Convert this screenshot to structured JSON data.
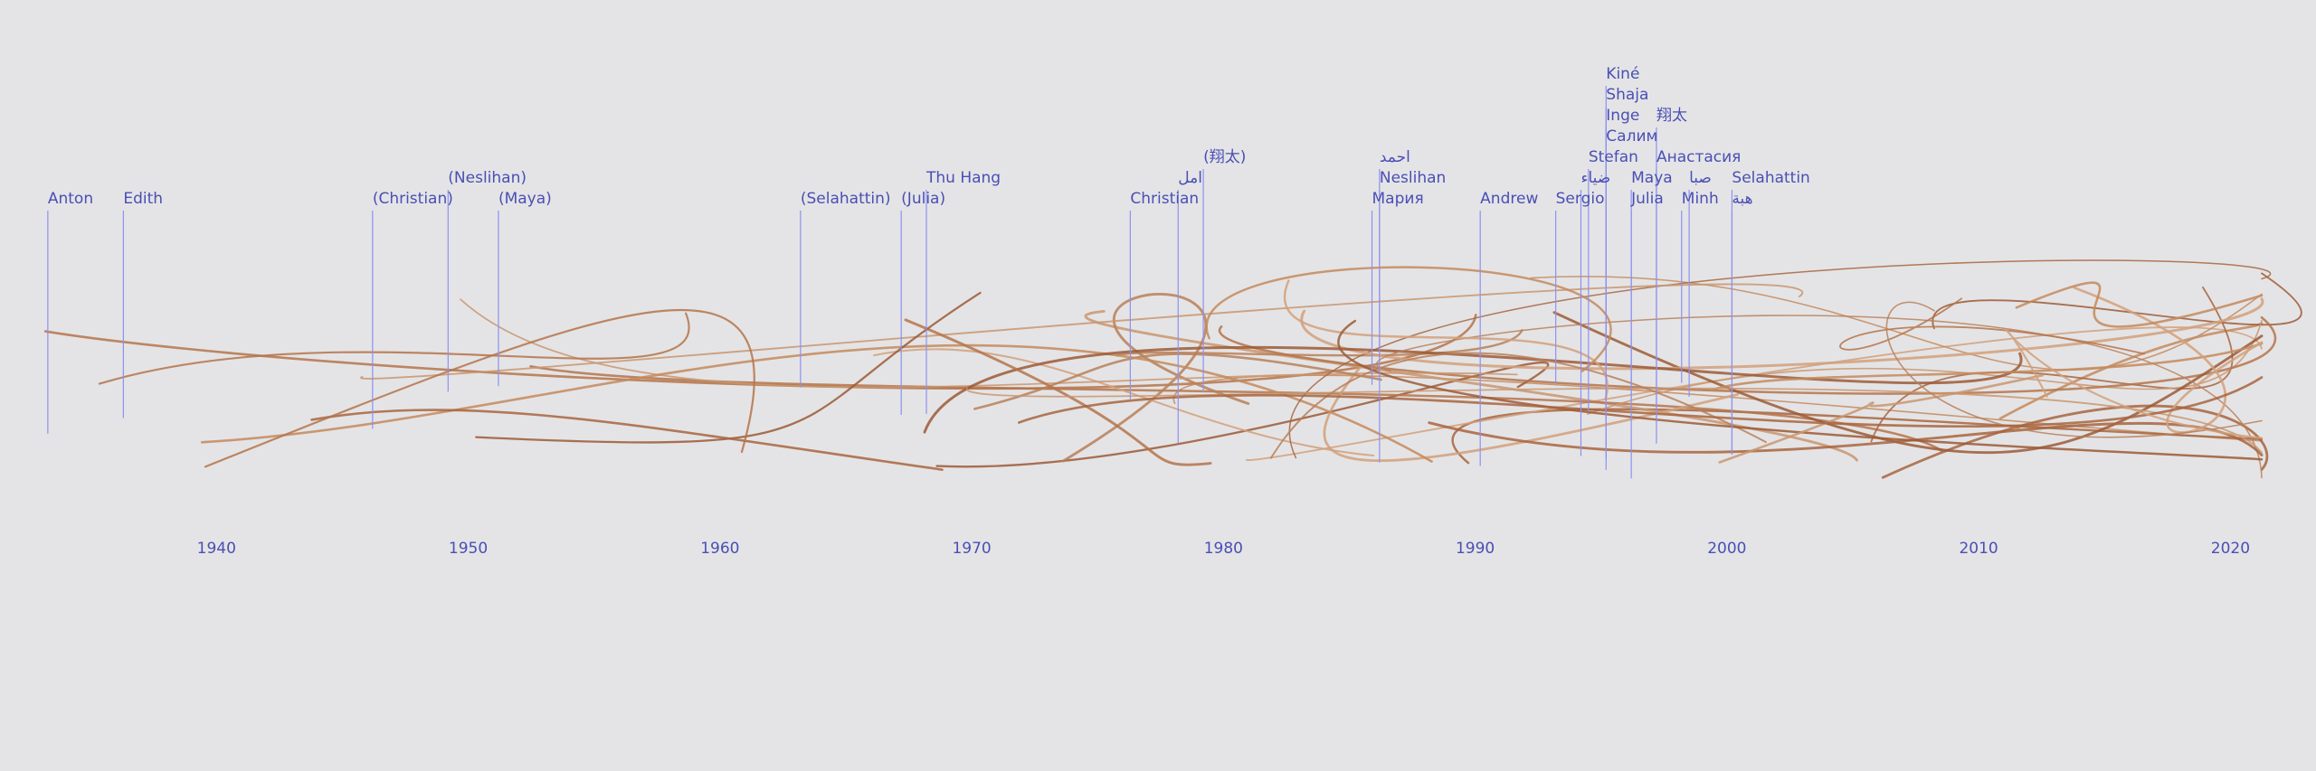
{
  "timeline": {
    "xlim": [
      1931.4,
      2023.4
    ],
    "xticks": [
      1940,
      1950,
      1960,
      1970,
      1980,
      1990,
      2000,
      2010,
      2020
    ],
    "names": [
      {
        "label": "Anton",
        "year": 1933.3
      },
      {
        "label": "Edith",
        "year": 1936.3
      },
      {
        "label": "(Christian)",
        "year": 1946.2
      },
      {
        "label": "(Neslihan)",
        "year": 1949.2
      },
      {
        "label": "(Maya)",
        "year": 1951.2
      },
      {
        "label": "(Selahattin)",
        "year": 1963.2
      },
      {
        "label": "(Julia)",
        "year": 1967.2
      },
      {
        "label": "Thu Hang",
        "year": 1968.2
      },
      {
        "label": "Christian",
        "year": 1976.3
      },
      {
        "label": "امل",
        "year": 1978.2
      },
      {
        "label": "(翔太)",
        "year": 1979.2
      },
      {
        "label": "Мария",
        "year": 1985.9
      },
      {
        "label": "Neslihan",
        "year": 1986.2
      },
      {
        "label": "احمد",
        "year": 1986.2
      },
      {
        "label": "Andrew",
        "year": 1990.2
      },
      {
        "label": "Sergio",
        "year": 1993.2
      },
      {
        "label": "ضياء",
        "year": 1994.2
      },
      {
        "label": "Stefan",
        "year": 1994.5
      },
      {
        "label": "Салим",
        "year": 1995.2
      },
      {
        "label": "Inge",
        "year": 1995.2
      },
      {
        "label": "Shaja",
        "year": 1995.2
      },
      {
        "label": "Kiné",
        "year": 1995.2
      },
      {
        "label": "Julia",
        "year": 1996.2
      },
      {
        "label": "Maya",
        "year": 1996.2
      },
      {
        "label": "Анастасия",
        "year": 1997.2
      },
      {
        "label": "翔太",
        "year": 1997.2
      },
      {
        "label": "Minh",
        "year": 1998.2
      },
      {
        "label": "صبا",
        "year": 1998.5
      },
      {
        "label": "هبة",
        "year": 2000.2
      },
      {
        "label": "Selahattin",
        "year": 2000.2
      }
    ]
  }
}
